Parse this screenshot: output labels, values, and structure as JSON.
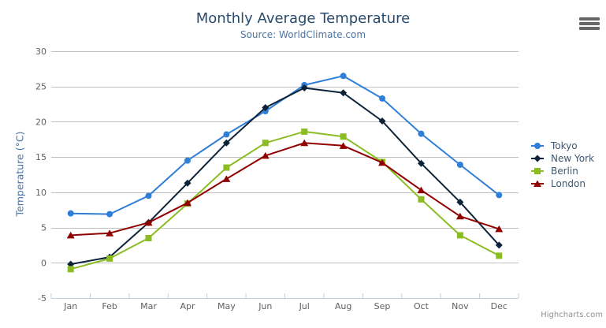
{
  "chart_data": {
    "type": "line",
    "title": "Monthly Average Temperature",
    "subtitle": "Source: WorldClimate.com",
    "xlabel": "",
    "ylabel": "Temperature (°C)",
    "categories": [
      "Jan",
      "Feb",
      "Mar",
      "Apr",
      "May",
      "Jun",
      "Jul",
      "Aug",
      "Sep",
      "Oct",
      "Nov",
      "Dec"
    ],
    "yticks": [
      -5,
      0,
      5,
      10,
      15,
      20,
      25,
      30
    ],
    "ylim": [
      -5,
      30
    ],
    "grid": true,
    "legend_position": "right",
    "series": [
      {
        "name": "Tokyo",
        "color": "#2f7ed8",
        "marker": "circle",
        "values": [
          7.0,
          6.9,
          9.5,
          14.5,
          18.2,
          21.5,
          25.2,
          26.5,
          23.3,
          18.3,
          13.9,
          9.6
        ]
      },
      {
        "name": "New York",
        "color": "#0d233a",
        "marker": "diamond",
        "values": [
          -0.2,
          0.8,
          5.7,
          11.3,
          17.0,
          22.0,
          24.8,
          24.1,
          20.1,
          14.1,
          8.6,
          2.5
        ]
      },
      {
        "name": "Berlin",
        "color": "#8bbc21",
        "marker": "square",
        "values": [
          -0.9,
          0.6,
          3.5,
          8.4,
          13.5,
          17.0,
          18.6,
          17.9,
          14.3,
          9.0,
          3.9,
          1.0
        ]
      },
      {
        "name": "London",
        "color": "#910000",
        "marker": "triangle",
        "values": [
          3.9,
          4.2,
          5.7,
          8.5,
          11.9,
          15.2,
          17.0,
          16.6,
          14.2,
          10.3,
          6.6,
          4.8
        ]
      }
    ]
  },
  "credits": {
    "label": "Highcharts.com"
  },
  "icons": {
    "context_menu": "hamburger-icon"
  },
  "colors": {
    "title": "#274b6d",
    "subtitle": "#4d759e",
    "yaxis_title": "#4572A7",
    "axis_labels": "#606060",
    "gridline": "#C0C0C0",
    "axis_line": "#C0D0E0",
    "legend_text": "#3E576F",
    "credits_text": "#909090",
    "menu_icon": "#666666"
  }
}
